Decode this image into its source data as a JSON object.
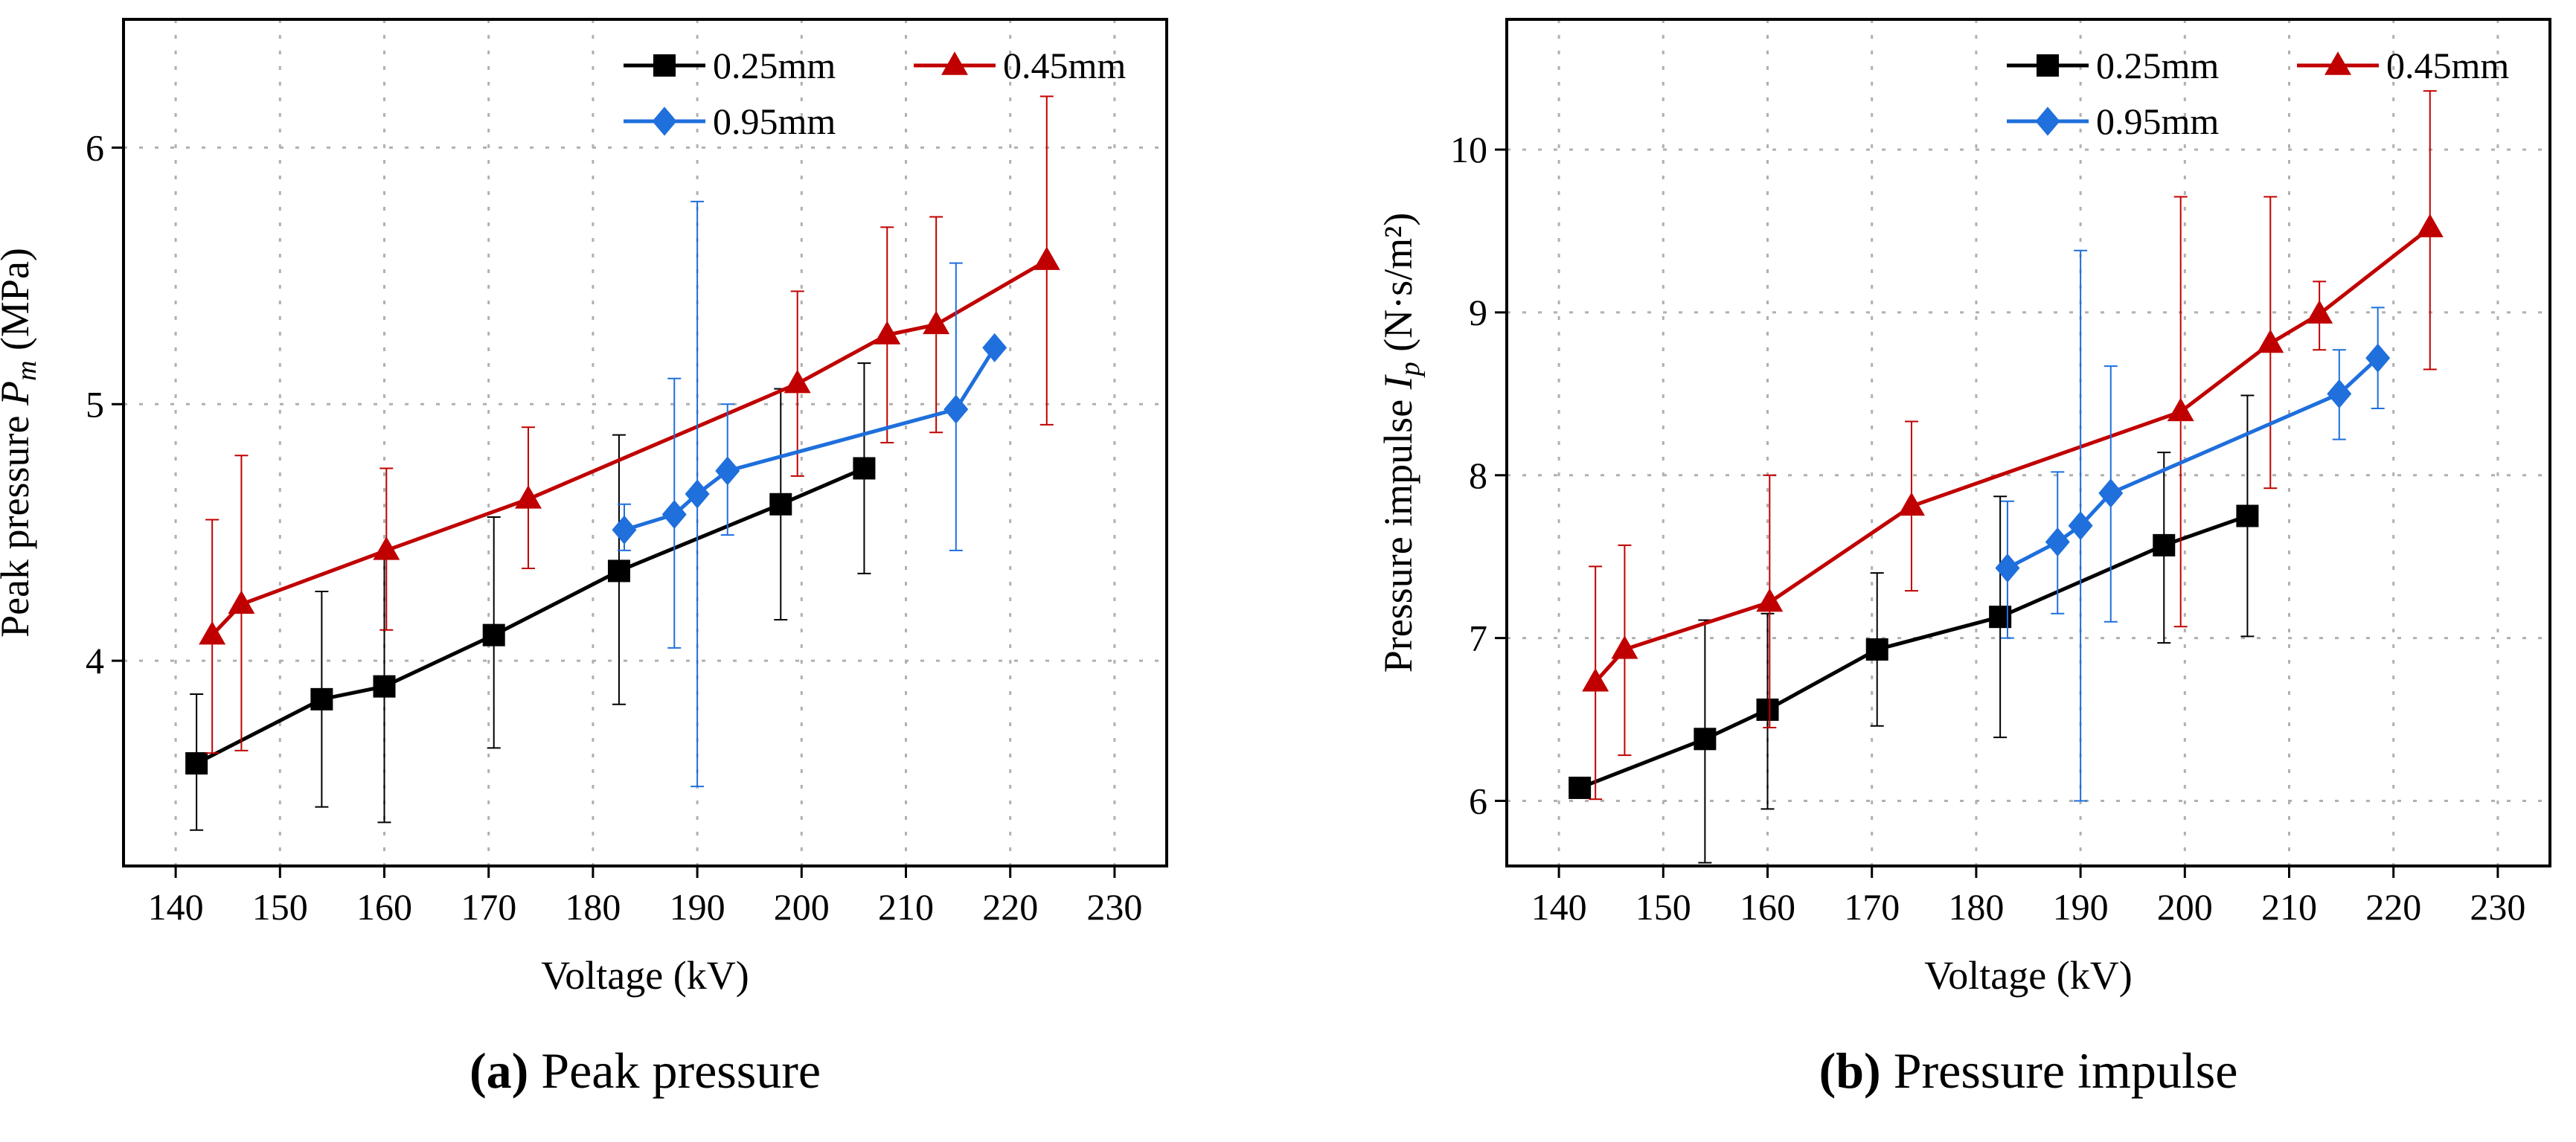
{
  "colors": {
    "s025": "#000000",
    "s045": "#c00000",
    "s095": "#1f6fdc",
    "grid": "#b0b0b0"
  },
  "chart_data": [
    {
      "type": "line",
      "caption_letter": "(a)",
      "caption_text": " Peak pressure",
      "ylabel_prefix": "Peak pressure ",
      "ylabel_var": "P",
      "ylabel_sub": "m",
      "ylabel_unit": " (MPa)",
      "xlabel": "Voltage (kV)",
      "xlim": [
        135,
        235
      ],
      "ylim": [
        3.2,
        6.5
      ],
      "xticks": [
        "140",
        "150",
        "160",
        "170",
        "180",
        "190",
        "200",
        "210",
        "220",
        "230"
      ],
      "yticks": [
        "4",
        "5",
        "6"
      ],
      "legend_position": "top-right",
      "series": [
        {
          "name": "0.25mm",
          "marker": "square",
          "color": "#000000",
          "x": [
            142,
            154,
            160,
            170.5,
            182.5,
            198,
            206
          ],
          "y": [
            3.6,
            3.85,
            3.9,
            4.1,
            4.35,
            4.61,
            4.75
          ],
          "err_low": [
            3.34,
            3.43,
            3.37,
            3.66,
            3.83,
            4.16,
            4.34
          ],
          "err_high": [
            3.87,
            4.27,
            4.42,
            4.56,
            4.88,
            5.06,
            5.16
          ]
        },
        {
          "name": "0.45mm",
          "marker": "triangle",
          "color": "#c00000",
          "x": [
            143.5,
            146.3,
            160.2,
            173.8,
            199.6,
            208.2,
            212.9,
            223.5
          ],
          "y": [
            4.1,
            4.22,
            4.43,
            4.63,
            5.08,
            5.27,
            5.31,
            5.56
          ],
          "err_low": [
            3.64,
            3.65,
            4.12,
            4.36,
            4.72,
            4.85,
            4.89,
            4.92
          ],
          "err_high": [
            4.55,
            4.8,
            4.75,
            4.91,
            5.44,
            5.69,
            5.73,
            6.2
          ]
        },
        {
          "name": "0.95mm",
          "marker": "diamond",
          "color": "#1f6fdc",
          "x": [
            183,
            187.8,
            190,
            192.9,
            214.8,
            218.5
          ],
          "y": [
            4.51,
            4.57,
            4.65,
            4.74,
            4.98,
            5.22
          ],
          "err_low": [
            4.43,
            4.05,
            3.51,
            4.49,
            4.43,
            5.22
          ],
          "err_high": [
            4.61,
            5.1,
            5.79,
            5.0,
            5.55,
            5.22
          ]
        }
      ]
    },
    {
      "type": "line",
      "caption_letter": "(b)",
      "caption_text": " Pressure impulse",
      "ylabel_prefix": "Pressure impulse ",
      "ylabel_var": "I",
      "ylabel_sub": "p",
      "ylabel_unit": " (N·s/m²)",
      "xlabel": "Voltage (kV)",
      "xlim": [
        135,
        235
      ],
      "ylim": [
        5.6,
        10.8
      ],
      "xticks": [
        "140",
        "150",
        "160",
        "170",
        "180",
        "190",
        "200",
        "210",
        "220",
        "230"
      ],
      "yticks": [
        "6",
        "7",
        "8",
        "9",
        "10"
      ],
      "legend_position": "top-right",
      "series": [
        {
          "name": "0.25mm",
          "marker": "square",
          "color": "#000000",
          "x": [
            142,
            154,
            160,
            170.5,
            182.3,
            198,
            206
          ],
          "y": [
            6.08,
            6.38,
            6.56,
            6.93,
            7.13,
            7.57,
            7.75
          ],
          "err_low": [
            6.08,
            5.62,
            5.95,
            6.46,
            6.39,
            6.97,
            7.01
          ],
          "err_high": [
            6.08,
            7.11,
            7.15,
            7.4,
            7.87,
            8.14,
            8.49
          ]
        },
        {
          "name": "0.45mm",
          "marker": "triangle",
          "color": "#c00000",
          "x": [
            143.5,
            146.3,
            160.2,
            173.8,
            199.6,
            208.2,
            212.9,
            223.5
          ],
          "y": [
            6.73,
            6.93,
            7.22,
            7.81,
            8.39,
            8.81,
            8.99,
            9.52
          ],
          "err_low": [
            6.01,
            6.28,
            6.45,
            7.29,
            7.07,
            7.92,
            8.77,
            8.65
          ],
          "err_high": [
            7.44,
            7.57,
            8.0,
            8.33,
            9.71,
            9.71,
            9.19,
            10.36
          ]
        },
        {
          "name": "0.95mm",
          "marker": "diamond",
          "color": "#1f6fdc",
          "x": [
            183,
            187.8,
            190,
            192.9,
            214.8,
            218.5
          ],
          "y": [
            7.43,
            7.59,
            7.69,
            7.89,
            8.5,
            8.72
          ],
          "err_low": [
            7.0,
            7.15,
            6.0,
            7.1,
            8.22,
            8.41
          ],
          "err_high": [
            7.84,
            8.02,
            9.38,
            8.67,
            8.77,
            9.03
          ]
        }
      ]
    }
  ]
}
